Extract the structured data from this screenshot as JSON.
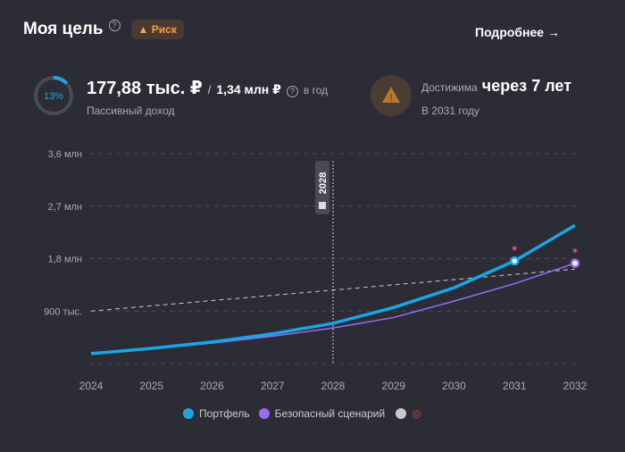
{
  "header": {
    "title": "Моя цель",
    "risk_label": "Риск",
    "more_label": "Подробнее →"
  },
  "income": {
    "progress_percent": 13,
    "progress_label": "13%",
    "amount": "177,88 тыс. ₽",
    "separator": "/",
    "goal": "1,34 млн ₽",
    "period": "в год",
    "label": "Пассивный доход"
  },
  "achievement": {
    "prefix": "Достижима",
    "value": "через 7 лет",
    "year": "В 2031 году"
  },
  "chart_data": {
    "type": "line",
    "x": [
      2024,
      2025,
      2026,
      2027,
      2028,
      2029,
      2030,
      2031,
      2032
    ],
    "ylim": [
      0,
      3.6
    ],
    "yticks": [
      {
        "v": 0.9,
        "label": "900 тыс."
      },
      {
        "v": 1.8,
        "label": "1,8 млн"
      },
      {
        "v": 2.7,
        "label": "2,7 млн"
      },
      {
        "v": 3.6,
        "label": "3,6 млн"
      }
    ],
    "marker": {
      "x": 2028,
      "label": "2028"
    },
    "series": [
      {
        "name": "Портфель",
        "color": "#1aa6e6",
        "values": [
          0.17,
          0.26,
          0.37,
          0.51,
          0.69,
          0.96,
          1.3,
          1.76,
          2.37
        ],
        "milestone": 2031
      },
      {
        "name": "Безопасный сценарий",
        "color": "#9a6cf0",
        "values": [
          0.17,
          0.25,
          0.35,
          0.47,
          0.61,
          0.79,
          1.07,
          1.37,
          1.72
        ],
        "milestone": 2032
      },
      {
        "name": "",
        "color": "#c8c8c8",
        "values": [
          0.9,
          0.99,
          1.08,
          1.17,
          1.26,
          1.35,
          1.44,
          1.53,
          1.62
        ],
        "dashed": true
      }
    ]
  },
  "legend": [
    {
      "label": "Портфель"
    },
    {
      "label": "Безопасный сценарий"
    },
    {
      "label": ""
    }
  ],
  "colors": {
    "accent": "#1aa6e6",
    "safe": "#9a6cf0",
    "risk": "#f5a13c"
  }
}
